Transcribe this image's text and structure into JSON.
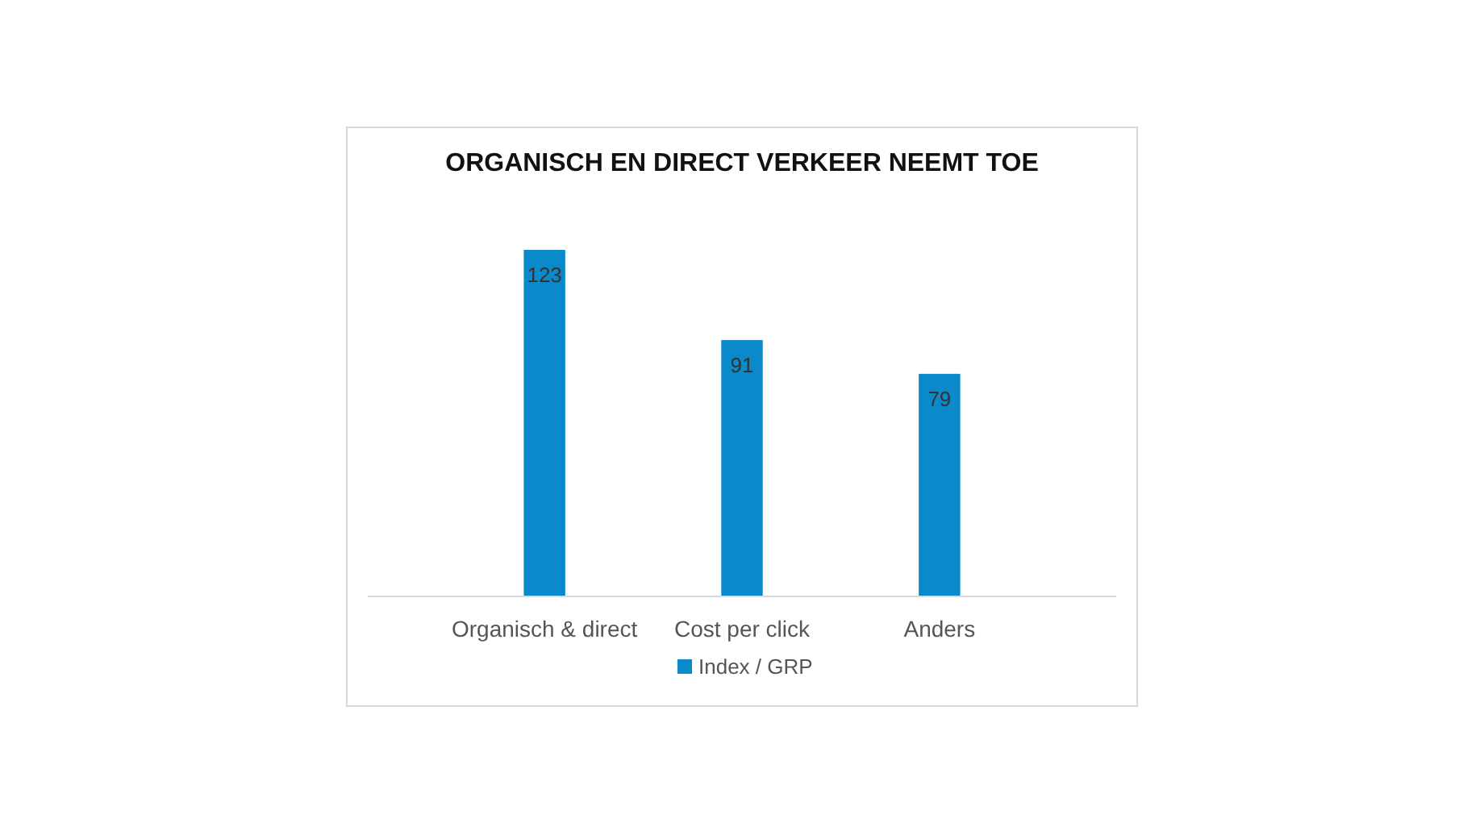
{
  "chart_data": {
    "type": "bar",
    "title": "ORGANISCH EN DIRECT VERKEER NEEMT TOE",
    "categories": [
      "Organisch & direct",
      "Cost per click",
      "Anders"
    ],
    "series": [
      {
        "name": "Index / GRP",
        "color": "#0a8acb",
        "values": [
          123,
          91,
          79
        ]
      }
    ],
    "data_labels": true,
    "legend": "bottom",
    "grid": false
  }
}
